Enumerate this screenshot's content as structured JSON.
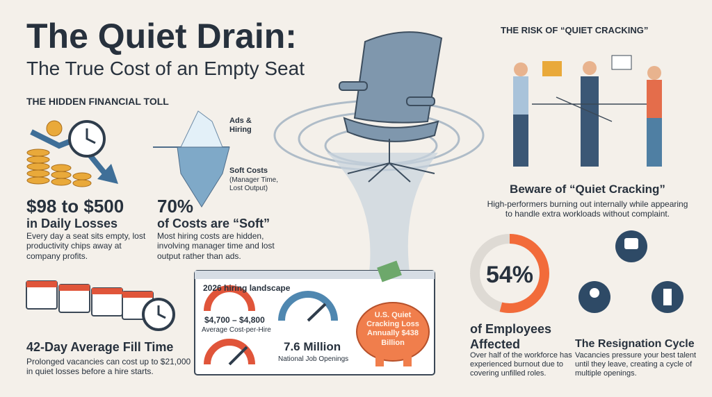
{
  "header": {
    "title": "The Quiet Drain:",
    "subtitle": "The True Cost of an Empty Seat"
  },
  "hidden_toll": {
    "heading": "THE HIDDEN FINANCIAL TOLL",
    "daily_losses": {
      "stat": "$98 to $500",
      "label": "in Daily Losses",
      "text": "Every day a seat sits empty, lost productivity chips away at company profits."
    },
    "soft_costs": {
      "stat": "70%",
      "label": "of Costs are “Soft”",
      "text": "Most hiring costs are hidden, involving manager time and lost output rather than ads.",
      "iceberg_top": "Ads & Hiring",
      "iceberg_bottom": "Soft Costs",
      "iceberg_note": "(Manager Time, Lost Output)"
    },
    "fill_time": {
      "stat": "42-Day Average Fill Time",
      "text": "Prolonged vacancies can cost up to $21,000 in quiet losses before a hire starts."
    }
  },
  "landscape": {
    "title": "2026 hiring landscape",
    "cost_per_hire": "$4,700 – $4,800",
    "cost_label": "Average Cost-per-Hire",
    "openings": "7.6 Million",
    "openings_label": "National Job Openings",
    "piggy": "U.S. Quiet Cracking Loss Annually $438 Billion"
  },
  "risk": {
    "heading": "THE RISK OF “QUIET CRACKING”",
    "title": "Beware of “Quiet Cracking”",
    "text": "High-performers burning out internally while appearing to handle extra workloads without complaint.",
    "affected": {
      "value": 54,
      "label": "54%"
    },
    "affected_title": "of Employees Affected",
    "affected_text": "Over half of the workforce has experienced burnout due to covering unfilled roles.",
    "cycle_title": "The Resignation Cycle",
    "cycle_text": "Vacancies pressure your best talent until they leave, creating a cycle of multiple openings."
  }
}
